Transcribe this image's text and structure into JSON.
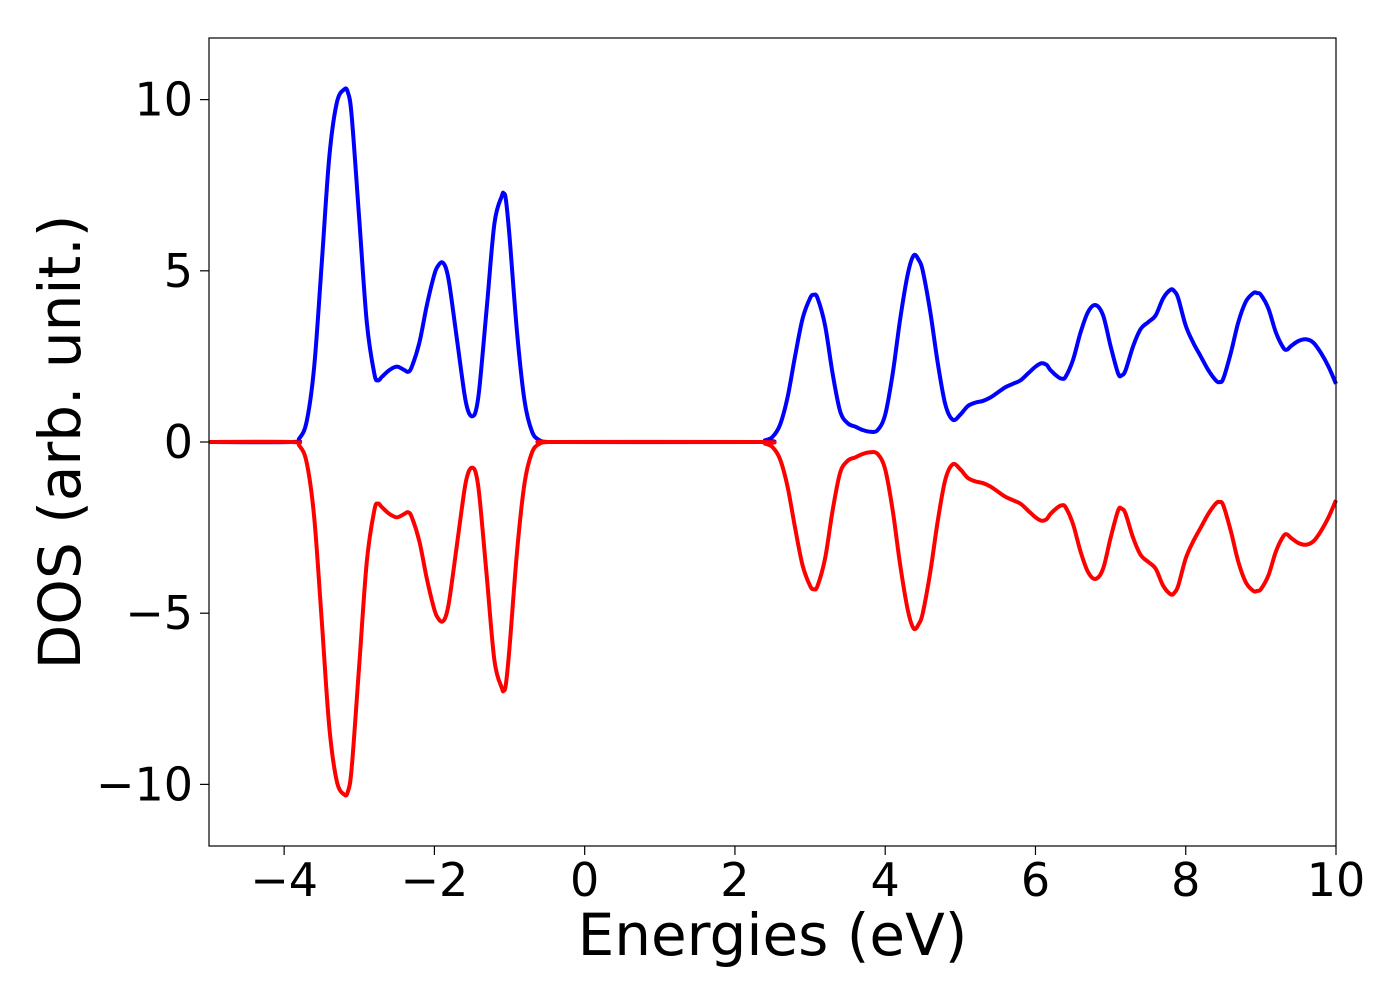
{
  "chart_data": {
    "type": "line",
    "title": "",
    "xlabel": "Energies (eV)",
    "ylabel": "DOS (arb. unit.)",
    "xlim": [
      -5,
      10
    ],
    "ylim": [
      -11.8,
      11.8
    ],
    "xticks": [
      -4,
      -2,
      0,
      2,
      4,
      6,
      8,
      10
    ],
    "yticks": [
      -10,
      -5,
      0,
      5,
      10
    ],
    "xtick_labels": [
      "−4",
      "−2",
      "0",
      "2",
      "4",
      "6",
      "8",
      "10"
    ],
    "ytick_labels": [
      "−10",
      "−5",
      "0",
      "5",
      "10"
    ],
    "grid": false,
    "legend": "none",
    "series": [
      {
        "color": "#0000ff",
        "x": [
          -5.0,
          -3.9,
          -3.8,
          -3.7,
          -3.6,
          -3.5,
          -3.4,
          -3.3,
          -3.2,
          -3.15,
          -3.1,
          -3.0,
          -2.9,
          -2.8,
          -2.75,
          -2.7,
          -2.6,
          -2.5,
          -2.4,
          -2.35,
          -2.3,
          -2.2,
          -2.1,
          -2.0,
          -1.95,
          -1.9,
          -1.85,
          -1.8,
          -1.7,
          -1.6,
          -1.55,
          -1.5,
          -1.45,
          -1.4,
          -1.3,
          -1.2,
          -1.1,
          -1.08,
          -1.05,
          -1.0,
          -0.9,
          -0.8,
          -0.7,
          -0.6,
          -0.5,
          -0.4,
          2.3,
          2.4,
          2.5,
          2.6,
          2.7,
          2.8,
          2.9,
          3.0,
          3.05,
          3.1,
          3.2,
          3.3,
          3.4,
          3.5,
          3.6,
          3.7,
          3.8,
          3.9,
          4.0,
          4.1,
          4.2,
          4.3,
          4.38,
          4.45,
          4.5,
          4.6,
          4.7,
          4.8,
          4.9,
          5.0,
          5.1,
          5.2,
          5.3,
          5.4,
          5.5,
          5.6,
          5.7,
          5.8,
          5.9,
          6.0,
          6.08,
          6.15,
          6.2,
          6.3,
          6.35,
          6.4,
          6.5,
          6.6,
          6.7,
          6.8,
          6.9,
          7.0,
          7.1,
          7.15,
          7.2,
          7.3,
          7.4,
          7.5,
          7.6,
          7.7,
          7.8,
          7.85,
          7.9,
          8.0,
          8.1,
          8.2,
          8.3,
          8.4,
          8.45,
          8.5,
          8.6,
          8.7,
          8.8,
          8.9,
          8.95,
          9.0,
          9.1,
          9.2,
          9.3,
          9.35,
          9.4,
          9.5,
          9.6,
          9.7,
          9.8,
          9.9,
          10.0
        ],
        "y": [
          0,
          0,
          0.1,
          0.6,
          2.2,
          5.2,
          8.3,
          9.9,
          10.3,
          10.2,
          9.5,
          6.5,
          3.5,
          2.0,
          1.8,
          1.9,
          2.1,
          2.2,
          2.1,
          2.05,
          2.2,
          2.9,
          4.0,
          4.9,
          5.15,
          5.25,
          5.1,
          4.6,
          3.0,
          1.4,
          0.9,
          0.75,
          0.9,
          1.6,
          4.0,
          6.4,
          7.2,
          7.25,
          7.1,
          6.0,
          3.2,
          1.2,
          0.3,
          0.05,
          0,
          0,
          0,
          0.05,
          0.15,
          0.5,
          1.3,
          2.5,
          3.6,
          4.2,
          4.3,
          4.2,
          3.4,
          2.0,
          0.9,
          0.55,
          0.45,
          0.35,
          0.3,
          0.35,
          0.8,
          2.0,
          3.6,
          4.9,
          5.45,
          5.3,
          5.0,
          3.8,
          2.3,
          1.1,
          0.65,
          0.8,
          1.05,
          1.15,
          1.2,
          1.3,
          1.45,
          1.6,
          1.7,
          1.8,
          2.0,
          2.2,
          2.3,
          2.25,
          2.1,
          1.9,
          1.85,
          1.9,
          2.4,
          3.2,
          3.8,
          4.0,
          3.7,
          2.8,
          2.0,
          1.95,
          2.1,
          2.8,
          3.3,
          3.5,
          3.7,
          4.2,
          4.45,
          4.4,
          4.2,
          3.4,
          2.9,
          2.5,
          2.1,
          1.8,
          1.75,
          1.85,
          2.6,
          3.5,
          4.1,
          4.35,
          4.35,
          4.3,
          3.9,
          3.2,
          2.75,
          2.7,
          2.8,
          2.95,
          3.0,
          2.9,
          2.6,
          2.2,
          1.7
        ]
      },
      {
        "color": "#ff0000",
        "x": [
          -5.0,
          -3.9,
          -3.8,
          -3.7,
          -3.6,
          -3.5,
          -3.4,
          -3.3,
          -3.2,
          -3.15,
          -3.1,
          -3.0,
          -2.9,
          -2.8,
          -2.75,
          -2.7,
          -2.6,
          -2.5,
          -2.4,
          -2.35,
          -2.3,
          -2.2,
          -2.1,
          -2.0,
          -1.95,
          -1.9,
          -1.85,
          -1.8,
          -1.7,
          -1.6,
          -1.55,
          -1.5,
          -1.45,
          -1.4,
          -1.3,
          -1.2,
          -1.1,
          -1.08,
          -1.05,
          -1.0,
          -0.9,
          -0.8,
          -0.7,
          -0.6,
          -0.5,
          -0.4,
          2.3,
          2.4,
          2.5,
          2.6,
          2.7,
          2.8,
          2.9,
          3.0,
          3.05,
          3.1,
          3.2,
          3.3,
          3.4,
          3.5,
          3.6,
          3.7,
          3.8,
          3.9,
          4.0,
          4.1,
          4.2,
          4.3,
          4.38,
          4.45,
          4.5,
          4.6,
          4.7,
          4.8,
          4.9,
          5.0,
          5.1,
          5.2,
          5.3,
          5.4,
          5.5,
          5.6,
          5.7,
          5.8,
          5.9,
          6.0,
          6.08,
          6.15,
          6.2,
          6.3,
          6.35,
          6.4,
          6.5,
          6.6,
          6.7,
          6.8,
          6.9,
          7.0,
          7.1,
          7.15,
          7.2,
          7.3,
          7.4,
          7.5,
          7.6,
          7.7,
          7.8,
          7.85,
          7.9,
          8.0,
          8.1,
          8.2,
          8.3,
          8.4,
          8.45,
          8.5,
          8.6,
          8.7,
          8.8,
          8.9,
          8.95,
          9.0,
          9.1,
          9.2,
          9.3,
          9.35,
          9.4,
          9.5,
          9.6,
          9.7,
          9.8,
          9.9,
          10.0
        ],
        "y": [
          0,
          0,
          -0.1,
          -0.6,
          -2.2,
          -5.2,
          -8.3,
          -9.9,
          -10.3,
          -10.2,
          -9.5,
          -6.5,
          -3.5,
          -2.0,
          -1.8,
          -1.9,
          -2.1,
          -2.2,
          -2.1,
          -2.05,
          -2.2,
          -2.9,
          -4.0,
          -4.9,
          -5.15,
          -5.25,
          -5.1,
          -4.6,
          -3.0,
          -1.4,
          -0.9,
          -0.75,
          -0.9,
          -1.6,
          -4.0,
          -6.4,
          -7.2,
          -7.25,
          -7.1,
          -6.0,
          -3.2,
          -1.2,
          -0.3,
          -0.05,
          0,
          0,
          0,
          -0.05,
          -0.15,
          -0.5,
          -1.3,
          -2.5,
          -3.6,
          -4.2,
          -4.3,
          -4.2,
          -3.4,
          -2.0,
          -0.9,
          -0.55,
          -0.45,
          -0.35,
          -0.3,
          -0.35,
          -0.8,
          -2.0,
          -3.6,
          -4.9,
          -5.45,
          -5.3,
          -5.0,
          -3.8,
          -2.3,
          -1.1,
          -0.65,
          -0.8,
          -1.05,
          -1.15,
          -1.2,
          -1.3,
          -1.45,
          -1.6,
          -1.7,
          -1.8,
          -2.0,
          -2.2,
          -2.3,
          -2.25,
          -2.1,
          -1.9,
          -1.85,
          -1.9,
          -2.4,
          -3.2,
          -3.8,
          -4.0,
          -3.7,
          -2.8,
          -2.0,
          -1.95,
          -2.1,
          -2.8,
          -3.3,
          -3.5,
          -3.7,
          -4.2,
          -4.45,
          -4.4,
          -4.2,
          -3.4,
          -2.9,
          -2.5,
          -2.1,
          -1.8,
          -1.75,
          -1.85,
          -2.6,
          -3.5,
          -4.1,
          -4.35,
          -4.35,
          -4.3,
          -3.9,
          -3.2,
          -2.75,
          -2.7,
          -2.8,
          -2.95,
          -3.0,
          -2.9,
          -2.6,
          -2.2,
          -1.7
        ]
      }
    ]
  }
}
